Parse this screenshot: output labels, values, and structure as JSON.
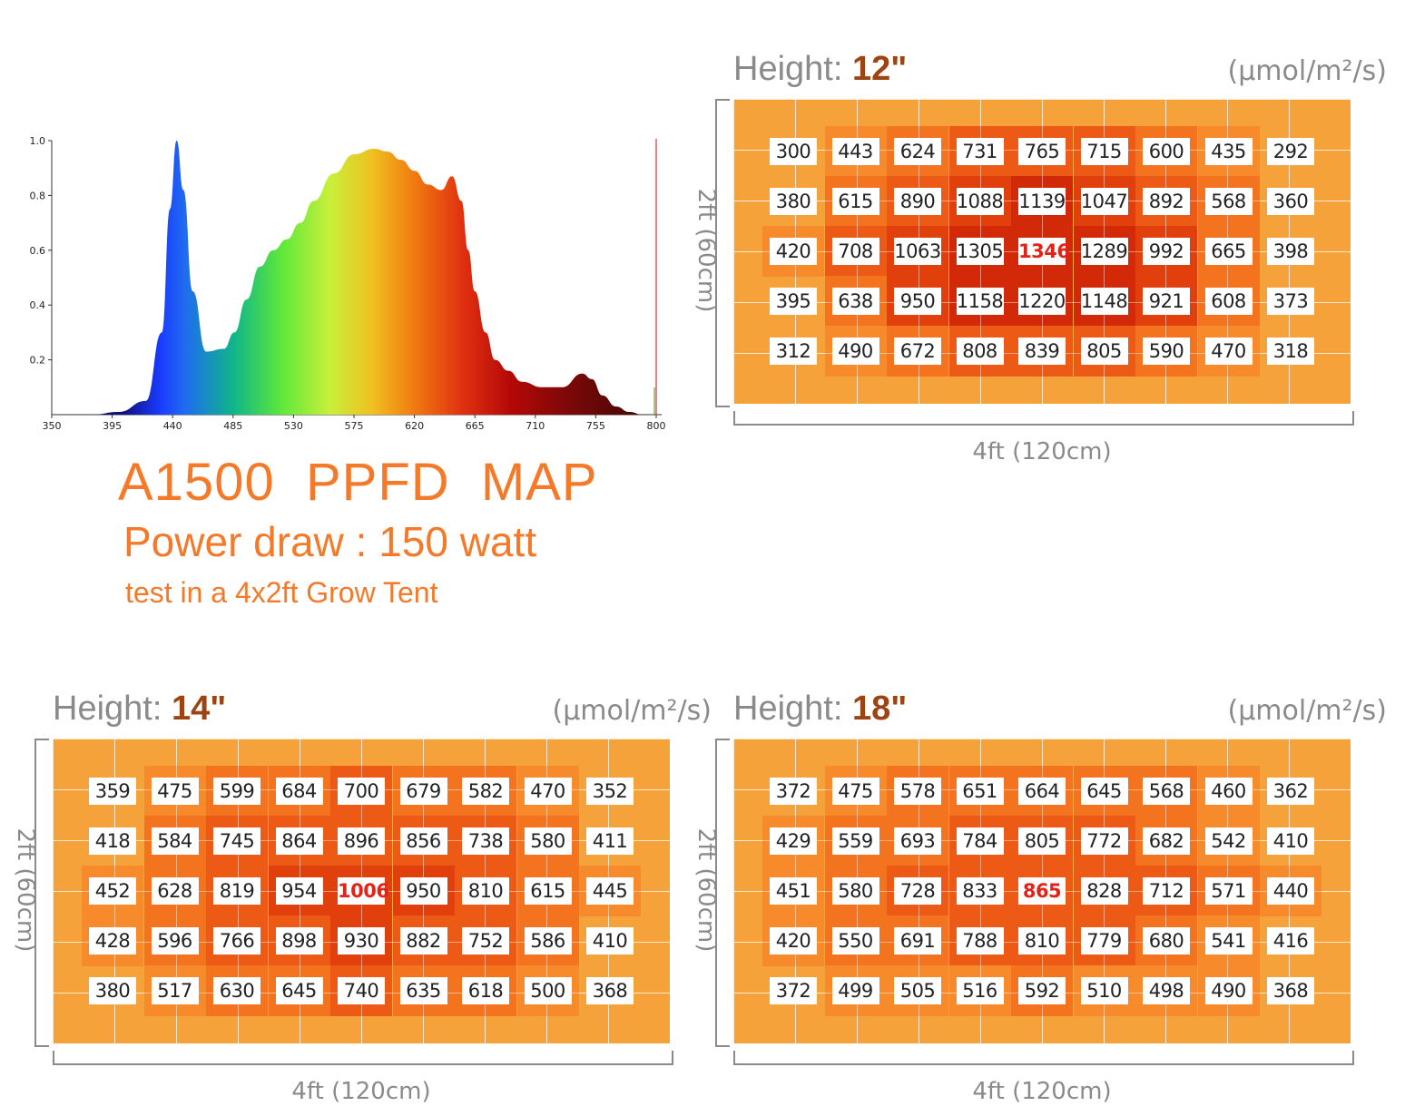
{
  "chart_data": [
    {
      "type": "area",
      "name": "spectrum",
      "x": [
        350,
        380,
        400,
        420,
        432,
        438,
        443,
        448,
        455,
        465,
        478,
        486,
        495,
        505,
        515,
        525,
        535,
        545,
        560,
        575,
        590,
        600,
        610,
        620,
        630,
        640,
        648,
        655,
        660,
        665,
        673,
        680,
        690,
        700,
        715,
        730,
        745,
        752,
        760,
        770,
        780,
        790,
        800
      ],
      "y": [
        0.0,
        0.0,
        0.01,
        0.05,
        0.3,
        0.75,
        1.0,
        0.82,
        0.45,
        0.23,
        0.24,
        0.3,
        0.42,
        0.54,
        0.6,
        0.64,
        0.7,
        0.78,
        0.88,
        0.95,
        0.97,
        0.96,
        0.93,
        0.89,
        0.84,
        0.82,
        0.87,
        0.78,
        0.6,
        0.45,
        0.3,
        0.2,
        0.16,
        0.12,
        0.1,
        0.1,
        0.15,
        0.13,
        0.07,
        0.03,
        0.01,
        0.0,
        0.0
      ],
      "xticks": [
        350,
        395,
        440,
        485,
        530,
        575,
        620,
        665,
        710,
        755,
        800
      ],
      "yticks": [
        1.0,
        0.8,
        0.6,
        0.4,
        0.2
      ],
      "xlim": [
        350,
        800
      ],
      "ylim": [
        0,
        1.0
      ],
      "marker_x": 800
    },
    {
      "type": "heatmap",
      "height_label": "Height: ",
      "height_value": "12\"",
      "unit": "(μmol/m²/s)",
      "xlabel": "4ft (120cm)",
      "ylabel": "2ft (60cm)",
      "values": [
        [
          300,
          443,
          624,
          731,
          765,
          715,
          600,
          435,
          292
        ],
        [
          380,
          615,
          890,
          1088,
          1139,
          1047,
          892,
          568,
          360
        ],
        [
          420,
          708,
          1063,
          1305,
          1346,
          1289,
          992,
          665,
          398
        ],
        [
          395,
          638,
          950,
          1158,
          1220,
          1148,
          921,
          608,
          373
        ],
        [
          312,
          490,
          672,
          808,
          839,
          805,
          590,
          470,
          318
        ]
      ],
      "peak": 1346
    },
    {
      "type": "heatmap",
      "height_label": "Height: ",
      "height_value": "14\"",
      "unit": "(μmol/m²/s)",
      "xlabel": "4ft (120cm)",
      "ylabel": "2ft (60cm)",
      "values": [
        [
          359,
          475,
          599,
          684,
          700,
          679,
          582,
          470,
          352
        ],
        [
          418,
          584,
          745,
          864,
          896,
          856,
          738,
          580,
          411
        ],
        [
          452,
          628,
          819,
          954,
          1006,
          950,
          810,
          615,
          445
        ],
        [
          428,
          596,
          766,
          898,
          930,
          882,
          752,
          586,
          410
        ],
        [
          380,
          517,
          630,
          645,
          740,
          635,
          618,
          500,
          368
        ]
      ],
      "peak": 1006
    },
    {
      "type": "heatmap",
      "height_label": "Height: ",
      "height_value": "18\"",
      "unit": "(μmol/m²/s)",
      "xlabel": "4ft (120cm)",
      "ylabel": "2ft (60cm)",
      "values": [
        [
          372,
          475,
          578,
          651,
          664,
          645,
          568,
          460,
          362
        ],
        [
          429,
          559,
          693,
          784,
          805,
          772,
          682,
          542,
          410
        ],
        [
          451,
          580,
          728,
          833,
          865,
          828,
          712,
          571,
          440
        ],
        [
          420,
          550,
          691,
          788,
          810,
          779,
          680,
          541,
          416
        ],
        [
          372,
          499,
          505,
          516,
          592,
          510,
          498,
          490,
          368
        ]
      ],
      "peak": 865
    }
  ],
  "title": {
    "main": "A1500  PPFD  MAP",
    "power": "Power draw : 150 watt",
    "note": "test in a 4x2ft Grow Tent"
  }
}
